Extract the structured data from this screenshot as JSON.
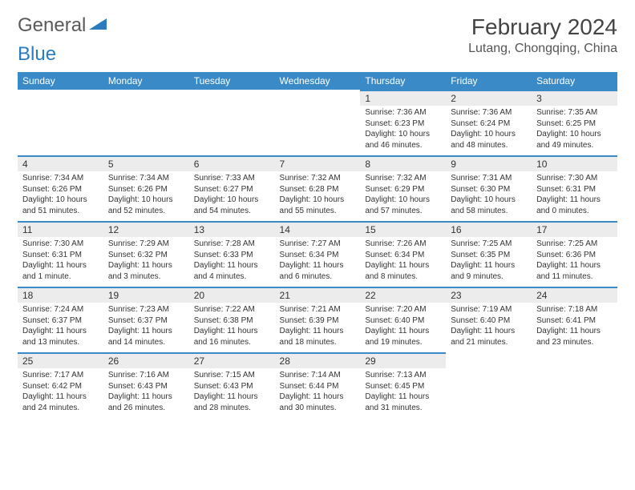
{
  "logo": {
    "general": "General",
    "blue": "Blue"
  },
  "title": "February 2024",
  "location": "Lutang, Chongqing, China",
  "colors": {
    "header_bg": "#3a8ac7",
    "header_text": "#ffffff",
    "daynum_bg": "#ececec",
    "daynum_border": "#3a8ac7",
    "body_text": "#333333",
    "logo_blue": "#2b7bbf",
    "logo_gray": "#5a5a5a"
  },
  "weekdays": [
    "Sunday",
    "Monday",
    "Tuesday",
    "Wednesday",
    "Thursday",
    "Friday",
    "Saturday"
  ],
  "grid": [
    [
      null,
      null,
      null,
      null,
      {
        "n": "1",
        "sr": "7:36 AM",
        "ss": "6:23 PM",
        "dl": "10 hours and 46 minutes."
      },
      {
        "n": "2",
        "sr": "7:36 AM",
        "ss": "6:24 PM",
        "dl": "10 hours and 48 minutes."
      },
      {
        "n": "3",
        "sr": "7:35 AM",
        "ss": "6:25 PM",
        "dl": "10 hours and 49 minutes."
      }
    ],
    [
      {
        "n": "4",
        "sr": "7:34 AM",
        "ss": "6:26 PM",
        "dl": "10 hours and 51 minutes."
      },
      {
        "n": "5",
        "sr": "7:34 AM",
        "ss": "6:26 PM",
        "dl": "10 hours and 52 minutes."
      },
      {
        "n": "6",
        "sr": "7:33 AM",
        "ss": "6:27 PM",
        "dl": "10 hours and 54 minutes."
      },
      {
        "n": "7",
        "sr": "7:32 AM",
        "ss": "6:28 PM",
        "dl": "10 hours and 55 minutes."
      },
      {
        "n": "8",
        "sr": "7:32 AM",
        "ss": "6:29 PM",
        "dl": "10 hours and 57 minutes."
      },
      {
        "n": "9",
        "sr": "7:31 AM",
        "ss": "6:30 PM",
        "dl": "10 hours and 58 minutes."
      },
      {
        "n": "10",
        "sr": "7:30 AM",
        "ss": "6:31 PM",
        "dl": "11 hours and 0 minutes."
      }
    ],
    [
      {
        "n": "11",
        "sr": "7:30 AM",
        "ss": "6:31 PM",
        "dl": "11 hours and 1 minute."
      },
      {
        "n": "12",
        "sr": "7:29 AM",
        "ss": "6:32 PM",
        "dl": "11 hours and 3 minutes."
      },
      {
        "n": "13",
        "sr": "7:28 AM",
        "ss": "6:33 PM",
        "dl": "11 hours and 4 minutes."
      },
      {
        "n": "14",
        "sr": "7:27 AM",
        "ss": "6:34 PM",
        "dl": "11 hours and 6 minutes."
      },
      {
        "n": "15",
        "sr": "7:26 AM",
        "ss": "6:34 PM",
        "dl": "11 hours and 8 minutes."
      },
      {
        "n": "16",
        "sr": "7:25 AM",
        "ss": "6:35 PM",
        "dl": "11 hours and 9 minutes."
      },
      {
        "n": "17",
        "sr": "7:25 AM",
        "ss": "6:36 PM",
        "dl": "11 hours and 11 minutes."
      }
    ],
    [
      {
        "n": "18",
        "sr": "7:24 AM",
        "ss": "6:37 PM",
        "dl": "11 hours and 13 minutes."
      },
      {
        "n": "19",
        "sr": "7:23 AM",
        "ss": "6:37 PM",
        "dl": "11 hours and 14 minutes."
      },
      {
        "n": "20",
        "sr": "7:22 AM",
        "ss": "6:38 PM",
        "dl": "11 hours and 16 minutes."
      },
      {
        "n": "21",
        "sr": "7:21 AM",
        "ss": "6:39 PM",
        "dl": "11 hours and 18 minutes."
      },
      {
        "n": "22",
        "sr": "7:20 AM",
        "ss": "6:40 PM",
        "dl": "11 hours and 19 minutes."
      },
      {
        "n": "23",
        "sr": "7:19 AM",
        "ss": "6:40 PM",
        "dl": "11 hours and 21 minutes."
      },
      {
        "n": "24",
        "sr": "7:18 AM",
        "ss": "6:41 PM",
        "dl": "11 hours and 23 minutes."
      }
    ],
    [
      {
        "n": "25",
        "sr": "7:17 AM",
        "ss": "6:42 PM",
        "dl": "11 hours and 24 minutes."
      },
      {
        "n": "26",
        "sr": "7:16 AM",
        "ss": "6:43 PM",
        "dl": "11 hours and 26 minutes."
      },
      {
        "n": "27",
        "sr": "7:15 AM",
        "ss": "6:43 PM",
        "dl": "11 hours and 28 minutes."
      },
      {
        "n": "28",
        "sr": "7:14 AM",
        "ss": "6:44 PM",
        "dl": "11 hours and 30 minutes."
      },
      {
        "n": "29",
        "sr": "7:13 AM",
        "ss": "6:45 PM",
        "dl": "11 hours and 31 minutes."
      },
      null,
      null
    ]
  ],
  "labels": {
    "sunrise": "Sunrise: ",
    "sunset": "Sunset: ",
    "daylight": "Daylight: "
  }
}
